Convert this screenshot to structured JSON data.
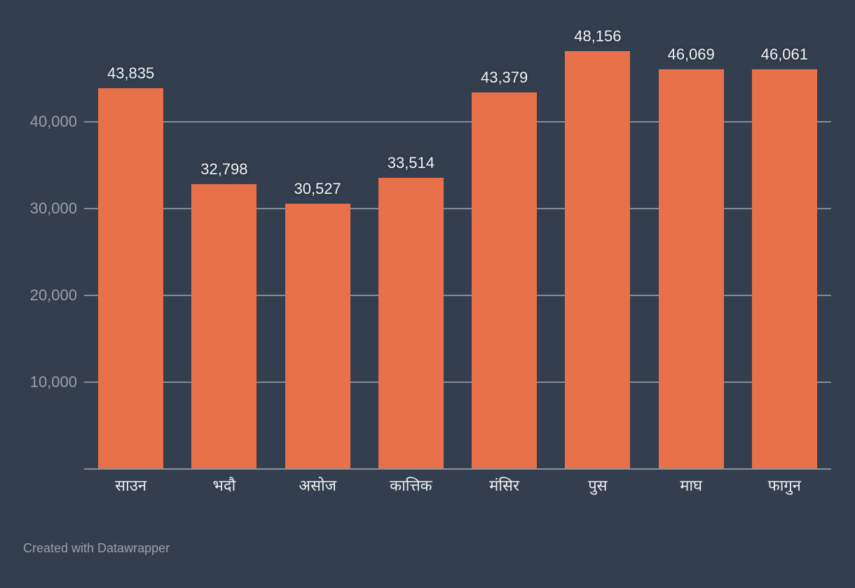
{
  "page": {
    "background_color": "#333e4e"
  },
  "footer": {
    "text": "Created with Datawrapper",
    "color": "#9aa1ab"
  },
  "chart_data": {
    "type": "bar",
    "title": "",
    "xlabel": "",
    "ylabel": "",
    "categories": [
      "साउन",
      "भदौ",
      "असोज",
      "कात्तिक",
      "मंसिर",
      "पुस",
      "माघ",
      "फागुन"
    ],
    "values": [
      43835,
      32798,
      30527,
      33514,
      43379,
      48156,
      46069,
      46061
    ],
    "value_labels": [
      "43,835",
      "32,798",
      "30,527",
      "33,514",
      "43,379",
      "48,156",
      "46,069",
      "46,061"
    ],
    "y_ticks": [
      {
        "value": 10000,
        "label": "10,000"
      },
      {
        "value": 20000,
        "label": "20,000"
      },
      {
        "value": 30000,
        "label": "30,000"
      },
      {
        "value": 40000,
        "label": "40,000"
      }
    ],
    "ylim": [
      0,
      54000
    ],
    "grid": true,
    "legend": false,
    "bar_color": "#e8714a",
    "grid_color": "#868c95",
    "axis_line_color": "#8b9199",
    "tick_label_color": "#99a0aa",
    "value_label_color": "#f3f4f6",
    "category_label_color": "#edeff2"
  }
}
